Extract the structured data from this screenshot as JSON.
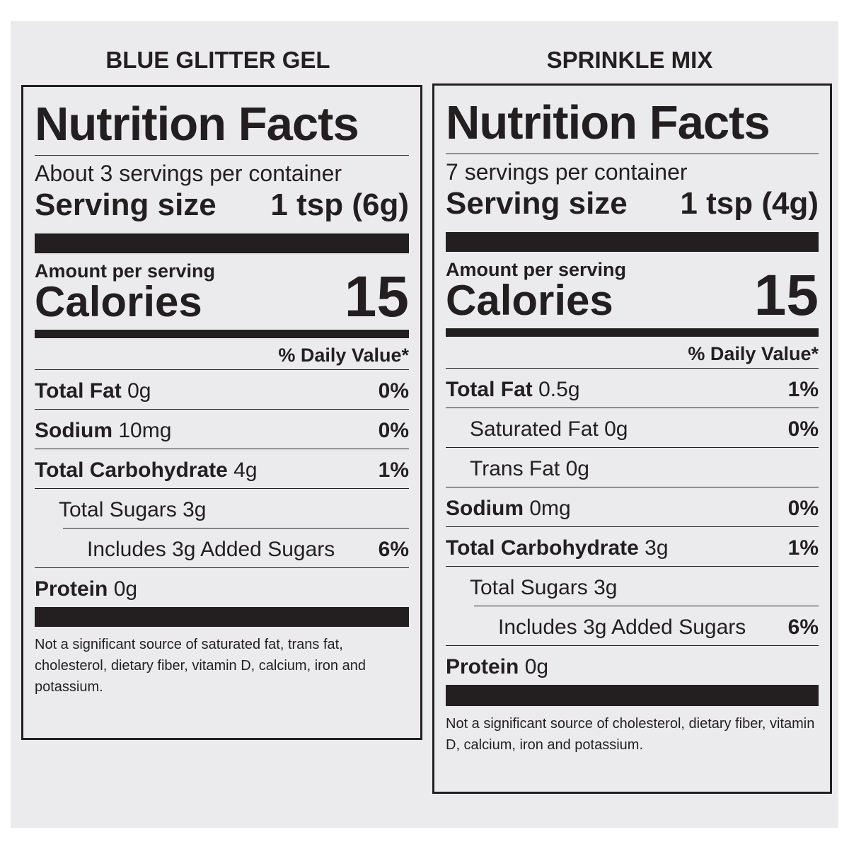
{
  "labels": [
    {
      "product": "BLUE GLITTER GEL",
      "title": "Nutrition Facts",
      "servings": "About 3 servings per container",
      "serving_size_label": "Serving size",
      "serving_size": "1 tsp (6g)",
      "amount_label": "Amount per serving",
      "calories_label": "Calories",
      "calories": "15",
      "dv_header": "% Daily Value*",
      "rows": [
        {
          "name": "Total Fat",
          "amount": "0g",
          "dv": "0%"
        },
        {
          "name": "Sodium",
          "amount": "10mg",
          "dv": "0%"
        },
        {
          "name": "Total Carbohydrate",
          "amount": "4g",
          "dv": "1%"
        },
        {
          "name": "Total Sugars 3g"
        },
        {
          "name": "Includes 3g Added Sugars",
          "dv": "6%"
        },
        {
          "name": "Protein",
          "amount": "0g"
        }
      ],
      "footnote": "Not a significant source of saturated fat, trans fat, cholesterol, dietary fiber, vitamin D, calcium, iron and potassium."
    },
    {
      "product": "SPRINKLE MIX",
      "title": "Nutrition Facts",
      "servings": "7 servings per container",
      "serving_size_label": "Serving size",
      "serving_size": "1 tsp (4g)",
      "amount_label": "Amount per serving",
      "calories_label": "Calories",
      "calories": "15",
      "dv_header": "% Daily Value*",
      "rows": [
        {
          "name": "Total Fat",
          "amount": "0.5g",
          "dv": "1%"
        },
        {
          "name": "Saturated Fat 0g",
          "dv": "0%"
        },
        {
          "name": "Trans Fat 0g"
        },
        {
          "name": "Sodium",
          "amount": "0mg",
          "dv": "0%"
        },
        {
          "name": "Total Carbohydrate",
          "amount": "3g",
          "dv": "1%"
        },
        {
          "name": "Total Sugars 3g"
        },
        {
          "name": "Includes 3g Added Sugars",
          "dv": "6%"
        },
        {
          "name": "Protein",
          "amount": "0g"
        }
      ],
      "footnote": "Not a significant source of cholesterol, dietary fiber, vitamin D, calcium, iron and potassium."
    }
  ]
}
